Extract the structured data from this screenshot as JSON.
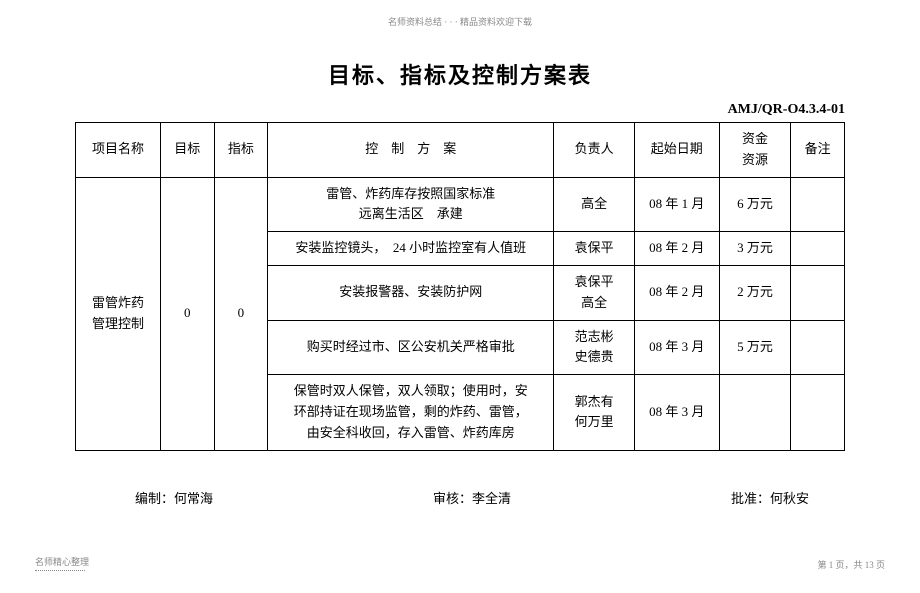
{
  "header": {
    "topText": "名师资料总结 · · · 精品资料欢迎下载",
    "title": "目标、指标及控制方案表",
    "docCode": "AMJ/QR-O4.3.4-01"
  },
  "table": {
    "columns": {
      "name": "项目名称",
      "target": "目标",
      "index": "指标",
      "plan": "控　制　方　案",
      "person": "负责人",
      "date": "起始日期",
      "fund": "资金\n资源",
      "note": "备注"
    },
    "merged": {
      "name": "雷管炸药\n管理控制",
      "target": "0",
      "index": "0"
    },
    "rows": [
      {
        "plan": "雷管、炸药库存按照国家标准\n远离生活区　承建",
        "person": "高全",
        "date": "08 年 1 月",
        "fund": "6 万元",
        "note": ""
      },
      {
        "plan": "安装监控镜头，　24 小时监控室有人值班",
        "person": "袁保平",
        "date": "08 年 2 月",
        "fund": "3 万元",
        "note": ""
      },
      {
        "plan": "安装报警器、安装防护网",
        "person": "袁保平\n高全",
        "date": "08 年 2 月",
        "fund": "2 万元",
        "note": ""
      },
      {
        "plan": "购买时经过市、区公安机关严格审批",
        "person": "范志彬\n史德贵",
        "date": "08 年 3 月",
        "fund": "5 万元",
        "note": ""
      },
      {
        "plan": "保管时双人保管，双人领取；使用时，安\n环部持证在现场监管，剩的炸药、雷管，\n由安全科收回，存入雷管、炸药库房",
        "person": "郭杰有\n何万里",
        "date": "08 年 3 月",
        "fund": "",
        "note": ""
      }
    ]
  },
  "footer": {
    "compile": "编制：何常海",
    "review": "审核：李全清",
    "approve": "批准：何秋安"
  },
  "bottom": {
    "left": "名师精心整理",
    "right": "第 1 页，共 13 页"
  },
  "style": {
    "background": "#ffffff",
    "border_color": "#000000",
    "text_color": "#000000",
    "muted_color": "#888888",
    "title_fontsize": 22,
    "body_fontsize": 13,
    "small_fontsize": 9
  }
}
